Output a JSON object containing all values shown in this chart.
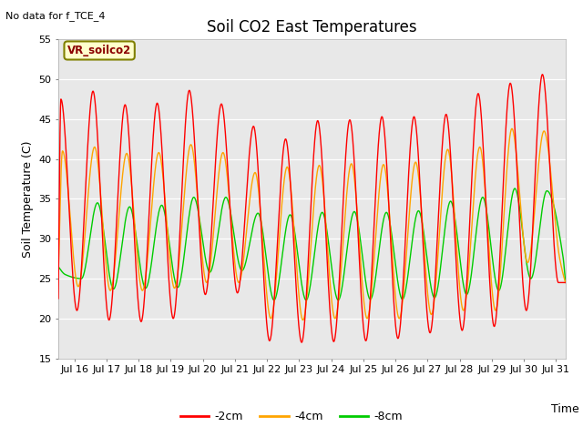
{
  "title": "Soil CO2 East Temperatures",
  "ylabel": "Soil Temperature (C)",
  "xlabel": "Time",
  "ylim": [
    15,
    55
  ],
  "xlim": [
    15.5,
    31.3
  ],
  "xtick_days": [
    16,
    17,
    18,
    19,
    20,
    21,
    22,
    23,
    24,
    25,
    26,
    27,
    28,
    29,
    30,
    31
  ],
  "xtick_labels": [
    "Jul 16",
    "Jul 17",
    "Jul 18",
    "Jul 19",
    "Jul 20",
    "Jul 21",
    "Jul 22",
    "Jul 23",
    "Jul 24",
    "Jul 25",
    "Jul 26",
    "Jul 27",
    "Jul 28",
    "Jul 29",
    "Jul 30",
    "Jul 31"
  ],
  "no_data_text": "No data for f_TCE_4",
  "annotation_text": "VR_soilco2",
  "colors": [
    "#ff0000",
    "#ffa500",
    "#00cc00"
  ],
  "labels": [
    "-2cm",
    "-4cm",
    "-8cm"
  ],
  "plot_bg": "#e8e8e8",
  "fig_bg": "#ffffff",
  "title_fontsize": 12,
  "ylabel_fontsize": 9,
  "xlabel_fontsize": 9,
  "tick_fontsize": 8,
  "legend_fontsize": 9,
  "peaks_2cm": [
    47.5,
    48.5,
    46.8,
    47.0,
    48.6,
    46.9,
    44.1,
    42.5,
    44.8,
    44.9,
    45.3,
    45.3,
    45.6,
    48.2,
    49.5,
    50.6
  ],
  "troughs_2cm": [
    21.0,
    19.8,
    19.6,
    20.0,
    23.0,
    23.2,
    17.2,
    17.0,
    17.1,
    17.2,
    17.5,
    18.2,
    18.5,
    19.0,
    21.0,
    24.5
  ],
  "peaks_4cm": [
    41.0,
    41.5,
    40.7,
    40.8,
    41.8,
    40.8,
    38.3,
    39.0,
    39.2,
    39.4,
    39.3,
    39.6,
    41.2,
    41.5,
    43.8,
    43.5
  ],
  "troughs_4cm": [
    24.0,
    23.5,
    23.5,
    23.8,
    24.5,
    24.5,
    20.0,
    19.8,
    20.0,
    20.0,
    20.0,
    20.5,
    21.0,
    21.0,
    27.0,
    27.5
  ],
  "peaks_8cm": [
    25.5,
    34.5,
    34.0,
    34.2,
    35.2,
    35.2,
    33.2,
    33.0,
    33.3,
    33.4,
    33.3,
    33.5,
    34.7,
    35.2,
    36.3,
    36.0
  ],
  "troughs_8cm": [
    25.0,
    23.7,
    23.8,
    23.9,
    25.8,
    26.0,
    22.3,
    22.3,
    22.3,
    22.4,
    22.4,
    22.6,
    23.0,
    23.5,
    25.0,
    27.8
  ]
}
